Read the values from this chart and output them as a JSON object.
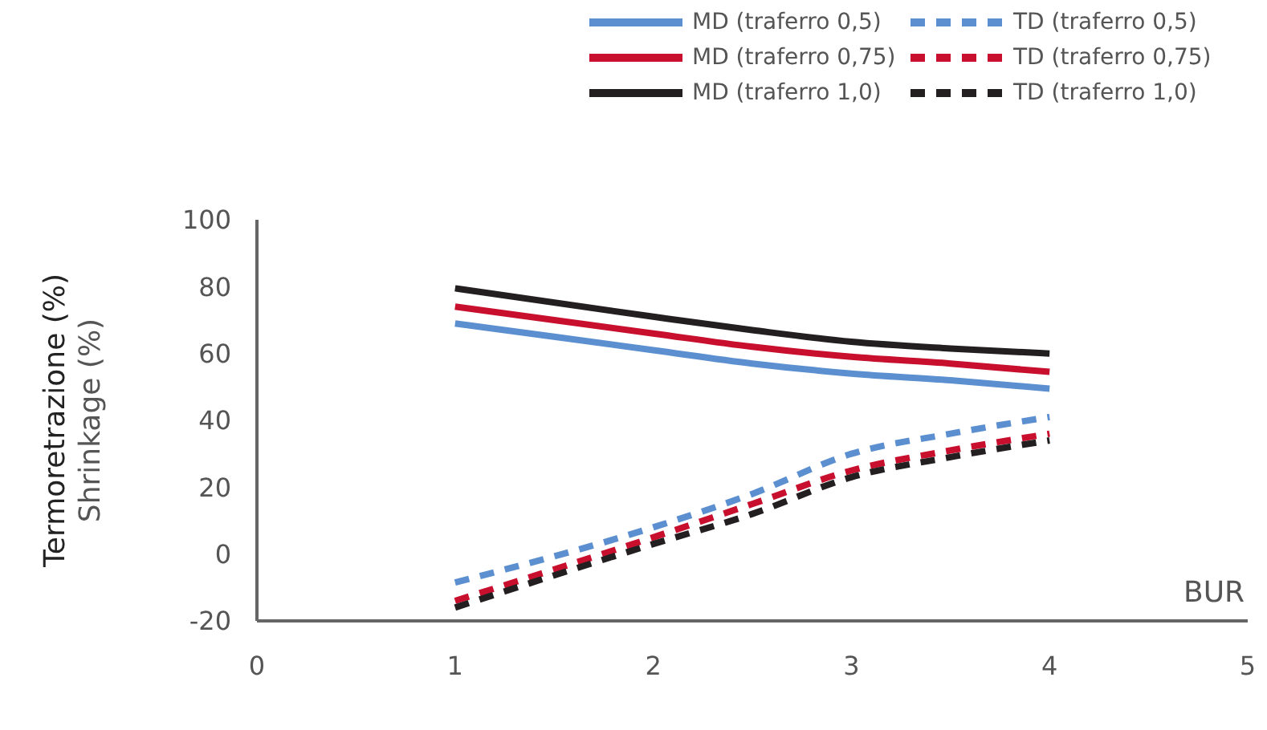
{
  "chart_data": {
    "type": "line",
    "xlabel": "BUR",
    "ylabel": "Termoretrazione (%)\nShrinkage (%)",
    "xlim": [
      0,
      5
    ],
    "xticks": [
      0,
      1,
      2,
      3,
      4,
      5
    ],
    "ylim": [
      -20,
      100
    ],
    "yticks": [
      -20,
      0,
      20,
      40,
      60,
      80,
      100
    ],
    "grid": false,
    "legend": "top right",
    "marker": "none",
    "x": [
      1,
      2,
      2.5,
      3,
      3.5,
      4
    ],
    "series": [
      {
        "name": "MD (traferro 0,5)",
        "color": "#5b8fd0",
        "line_style": "solid",
        "values": [
          69,
          61,
          57,
          54,
          52,
          49.5
        ]
      },
      {
        "name": "TD (traferro 0,5)",
        "color": "#5b8fd0",
        "line_style": "dashed",
        "values": [
          -8.5,
          8,
          18,
          30,
          36,
          41
        ]
      },
      {
        "name": "MD (traferro 0,75)",
        "color": "#c8102e",
        "line_style": "solid",
        "values": [
          74,
          66,
          62,
          59,
          57,
          54.5
        ]
      },
      {
        "name": "TD (traferro 0,75)",
        "color": "#c8102e",
        "line_style": "dashed",
        "values": [
          -14,
          5,
          15,
          25,
          31,
          36
        ]
      },
      {
        "name": "MD (traferro 1,0)",
        "color": "#231f20",
        "line_style": "solid",
        "values": [
          79.5,
          71,
          67,
          63.5,
          61.5,
          60
        ]
      },
      {
        "name": "TD (traferro 1,0)",
        "color": "#231f20",
        "line_style": "dashed",
        "values": [
          -16,
          3,
          12,
          23,
          29,
          34
        ]
      }
    ]
  }
}
